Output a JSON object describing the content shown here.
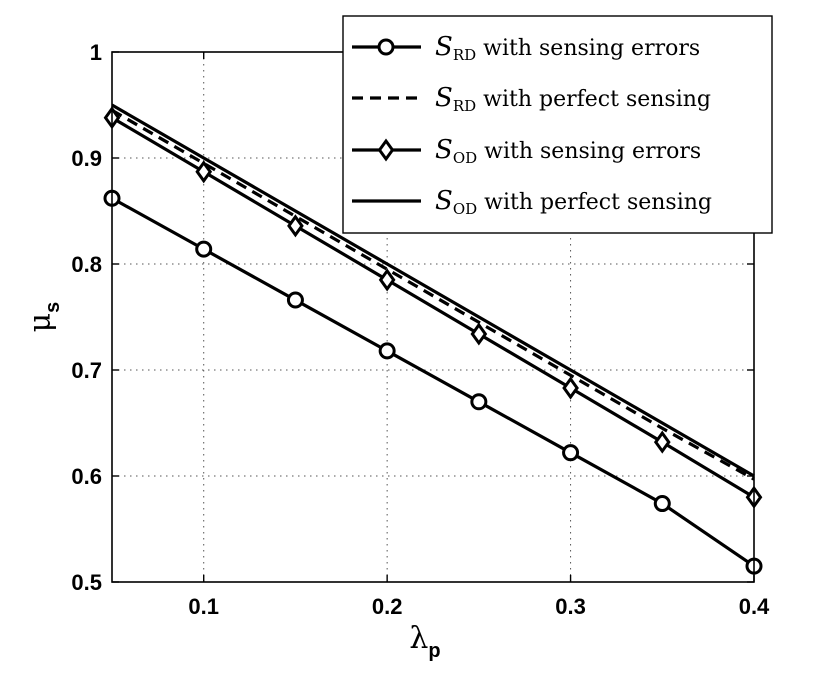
{
  "chart_data": {
    "type": "line",
    "title": "",
    "xlabel": {
      "symbol": "λ",
      "subscript": "p"
    },
    "ylabel": {
      "symbol": "μ",
      "subscript": "s"
    },
    "xlim": [
      0.05,
      0.4
    ],
    "ylim": [
      0.5,
      1.0
    ],
    "xticks": [
      0.1,
      0.2,
      0.3,
      0.4
    ],
    "xtick_labels": [
      "0.1",
      "0.2",
      "0.3",
      "0.4"
    ],
    "yticks": [
      0.5,
      0.6,
      0.7,
      0.8,
      0.9,
      1.0
    ],
    "ytick_labels": [
      "0.5",
      "0.6",
      "0.7",
      "0.8",
      "0.9",
      "1"
    ],
    "grid": true,
    "legend_position": "top-right",
    "x": [
      0.05,
      0.1,
      0.15,
      0.2,
      0.25,
      0.3,
      0.35,
      0.4
    ],
    "series": [
      {
        "name": "S_RD with sensing errors",
        "symbol": "S",
        "subscript": "RD",
        "suffix": "with sensing errors",
        "line": "solid",
        "marker": "circle",
        "values": [
          0.862,
          0.814,
          0.766,
          0.718,
          0.67,
          0.622,
          0.574,
          0.515
        ]
      },
      {
        "name": "S_RD with perfect sensing",
        "symbol": "S",
        "subscript": "RD",
        "suffix": "with perfect sensing",
        "line": "dashed",
        "marker": "none",
        "values": [
          0.945,
          0.895,
          0.845,
          0.795,
          0.745,
          0.695,
          0.645,
          0.597
        ]
      },
      {
        "name": "S_OD with sensing errors",
        "symbol": "S",
        "subscript": "OD",
        "suffix": "with sensing errors",
        "line": "solid",
        "marker": "diamond",
        "values": [
          0.938,
          0.887,
          0.836,
          0.785,
          0.734,
          0.683,
          0.632,
          0.58
        ]
      },
      {
        "name": "S_OD with perfect sensing",
        "symbol": "S",
        "subscript": "OD",
        "suffix": "with perfect sensing",
        "line": "solid",
        "marker": "none",
        "values": [
          0.95,
          0.9,
          0.85,
          0.8,
          0.75,
          0.7,
          0.65,
          0.6
        ]
      }
    ]
  }
}
